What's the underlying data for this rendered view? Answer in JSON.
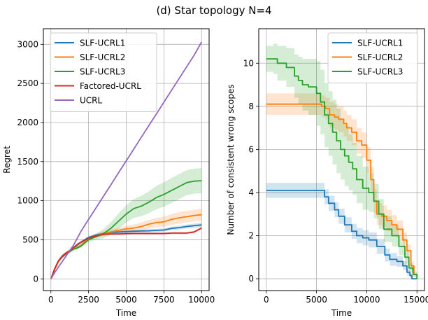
{
  "figure_title": "(d) Star topology N=4",
  "chart_data": [
    {
      "type": "line",
      "panel": "left",
      "title": "",
      "xlabel": "Time",
      "ylabel": "Regret",
      "xlim": [
        -500,
        10500
      ],
      "ylim": [
        -150,
        3200
      ],
      "xticks": [
        0,
        2500,
        5000,
        7500,
        10000
      ],
      "xtick_labels": [
        "0",
        "2500",
        "5000",
        "7500",
        "10000"
      ],
      "yticks": [
        0,
        500,
        1000,
        1500,
        2000,
        2500,
        3000
      ],
      "ytick_labels": [
        "0",
        "500",
        "1000",
        "1500",
        "2000",
        "2500",
        "3000"
      ],
      "grid": true,
      "legend_position": "top-left",
      "x": [
        0,
        250,
        500,
        750,
        1000,
        1250,
        1500,
        1750,
        2000,
        2500,
        3000,
        3500,
        4000,
        4500,
        5000,
        5500,
        6000,
        6500,
        7000,
        7500,
        8000,
        8500,
        9000,
        9500,
        10000
      ],
      "series": [
        {
          "name": "SLF-UCRL1",
          "color": "#1f77b4",
          "values": [
            0,
            120,
            220,
            280,
            320,
            350,
            390,
            430,
            470,
            530,
            560,
            580,
            595,
            600,
            605,
            610,
            612,
            615,
            620,
            625,
            645,
            655,
            670,
            680,
            690
          ],
          "band": [
            0,
            10,
            15,
            18,
            20,
            20,
            20,
            20,
            20,
            20,
            20,
            20,
            20,
            20,
            20,
            20,
            20,
            20,
            20,
            20,
            22,
            25,
            25,
            28,
            30
          ]
        },
        {
          "name": "SLF-UCRL2",
          "color": "#ff7f0e",
          "values": [
            0,
            120,
            220,
            290,
            330,
            360,
            390,
            400,
            430,
            520,
            550,
            580,
            600,
            620,
            640,
            650,
            670,
            700,
            720,
            730,
            760,
            780,
            795,
            810,
            820
          ],
          "band": [
            0,
            10,
            15,
            18,
            20,
            20,
            20,
            20,
            20,
            20,
            25,
            30,
            30,
            35,
            40,
            45,
            50,
            55,
            60,
            65,
            70,
            75,
            75,
            75,
            75
          ]
        },
        {
          "name": "SLF-UCRL3",
          "color": "#2ca02c",
          "values": [
            0,
            130,
            230,
            290,
            320,
            350,
            380,
            395,
            420,
            500,
            540,
            580,
            650,
            740,
            830,
            900,
            930,
            980,
            1040,
            1080,
            1130,
            1180,
            1230,
            1250,
            1255
          ],
          "band": [
            0,
            10,
            15,
            20,
            20,
            20,
            20,
            20,
            20,
            30,
            40,
            60,
            80,
            100,
            110,
            120,
            130,
            140,
            150,
            155,
            160,
            160,
            160,
            160,
            160
          ]
        },
        {
          "name": "Factored-UCRL",
          "color": "#d62728",
          "values": [
            0,
            130,
            230,
            290,
            330,
            360,
            400,
            440,
            470,
            520,
            550,
            570,
            575,
            575,
            578,
            580,
            580,
            580,
            580,
            580,
            585,
            585,
            585,
            600,
            650
          ],
          "band": [
            0,
            10,
            12,
            14,
            15,
            15,
            15,
            15,
            15,
            15,
            15,
            15,
            15,
            15,
            15,
            15,
            15,
            15,
            15,
            15,
            15,
            15,
            15,
            15,
            15
          ]
        },
        {
          "name": "UCRL",
          "color": "#9467bd",
          "values": [
            0,
            80,
            150,
            220,
            290,
            360,
            430,
            520,
            610,
            760,
            910,
            1060,
            1210,
            1360,
            1510,
            1660,
            1810,
            1960,
            2110,
            2260,
            2410,
            2560,
            2710,
            2860,
            3030
          ],
          "band": [
            0,
            3,
            5,
            5,
            5,
            5,
            5,
            5,
            5,
            5,
            5,
            5,
            5,
            5,
            5,
            5,
            5,
            5,
            5,
            5,
            5,
            5,
            5,
            5,
            5
          ]
        }
      ]
    },
    {
      "type": "line",
      "panel": "right",
      "title": "",
      "xlabel": "Time",
      "ylabel": "Number of consistent wrong scopes",
      "xlim": [
        -750,
        15750
      ],
      "ylim": [
        -0.55,
        11.6
      ],
      "xticks": [
        0,
        5000,
        10000,
        15000
      ],
      "xtick_labels": [
        "0",
        "5000",
        "10000",
        "15000"
      ],
      "yticks": [
        0,
        2,
        4,
        6,
        8,
        10
      ],
      "ytick_labels": [
        "0",
        "2",
        "4",
        "6",
        "8",
        "10"
      ],
      "grid": true,
      "legend_position": "top-right",
      "step": true,
      "series": [
        {
          "name": "SLF-UCRL1",
          "color": "#1f77b4",
          "x": [
            0,
            5500,
            5800,
            6200,
            6800,
            7200,
            7800,
            8500,
            9000,
            9600,
            10200,
            11000,
            11800,
            12300,
            13000,
            13600,
            14000,
            14300,
            14500,
            15000
          ],
          "values": [
            4.1,
            4.1,
            3.8,
            3.5,
            3.2,
            2.9,
            2.5,
            2.2,
            2.0,
            1.9,
            1.8,
            1.5,
            1.1,
            0.9,
            0.8,
            0.6,
            0.3,
            0.15,
            0,
            0
          ],
          "band": [
            0.35,
            0.35,
            0.35,
            0.35,
            0.35,
            0.35,
            0.35,
            0.35,
            0.35,
            0.35,
            0.35,
            0.35,
            0.3,
            0.3,
            0.25,
            0.2,
            0.15,
            0.1,
            0,
            0
          ]
        },
        {
          "name": "SLF-UCRL2",
          "color": "#ff7f0e",
          "x": [
            0,
            5200,
            5500,
            5900,
            6300,
            6800,
            7200,
            7700,
            8000,
            8500,
            9000,
            9500,
            10000,
            10400,
            10700,
            11000,
            11500,
            12000,
            12500,
            13000,
            13600,
            14000,
            14400,
            14700,
            15000
          ],
          "values": [
            8.1,
            8.1,
            8.0,
            7.9,
            7.6,
            7.5,
            7.4,
            7.2,
            7.0,
            6.8,
            6.4,
            6.2,
            5.5,
            4.6,
            3.6,
            3.0,
            2.9,
            2.7,
            2.5,
            2.3,
            1.8,
            1.3,
            0.6,
            0.2,
            0
          ],
          "band": [
            0.5,
            0.5,
            0.5,
            0.5,
            0.6,
            0.6,
            0.6,
            0.6,
            0.6,
            0.6,
            0.6,
            0.6,
            0.6,
            0.6,
            0.55,
            0.5,
            0.5,
            0.5,
            0.45,
            0.4,
            0.35,
            0.3,
            0.2,
            0.1,
            0
          ]
        },
        {
          "name": "SLF-UCRL3",
          "color": "#2ca02c",
          "x": [
            0,
            700,
            1100,
            2000,
            2800,
            3200,
            3600,
            4200,
            5000,
            5400,
            5800,
            6200,
            6600,
            7000,
            7400,
            7800,
            8200,
            8600,
            9000,
            9600,
            10200,
            10700,
            11200,
            11700,
            12500,
            13200,
            13800,
            14200,
            14600,
            15000
          ],
          "values": [
            10.2,
            10.2,
            10.0,
            9.8,
            9.4,
            9.2,
            9.0,
            8.9,
            8.6,
            8.2,
            7.6,
            7.2,
            6.8,
            6.4,
            6.0,
            5.7,
            5.4,
            5.1,
            4.6,
            4.2,
            4.0,
            3.6,
            3.0,
            2.3,
            2.0,
            1.5,
            1.0,
            0.5,
            0.2,
            0
          ],
          "band": [
            0.6,
            0.7,
            0.8,
            0.9,
            1.0,
            1.1,
            1.2,
            1.3,
            1.5,
            1.5,
            1.5,
            1.5,
            1.5,
            1.5,
            1.4,
            1.4,
            1.3,
            1.2,
            1.1,
            1.0,
            0.9,
            0.8,
            0.7,
            0.6,
            0.5,
            0.4,
            0.3,
            0.2,
            0.1,
            0
          ]
        }
      ]
    }
  ]
}
